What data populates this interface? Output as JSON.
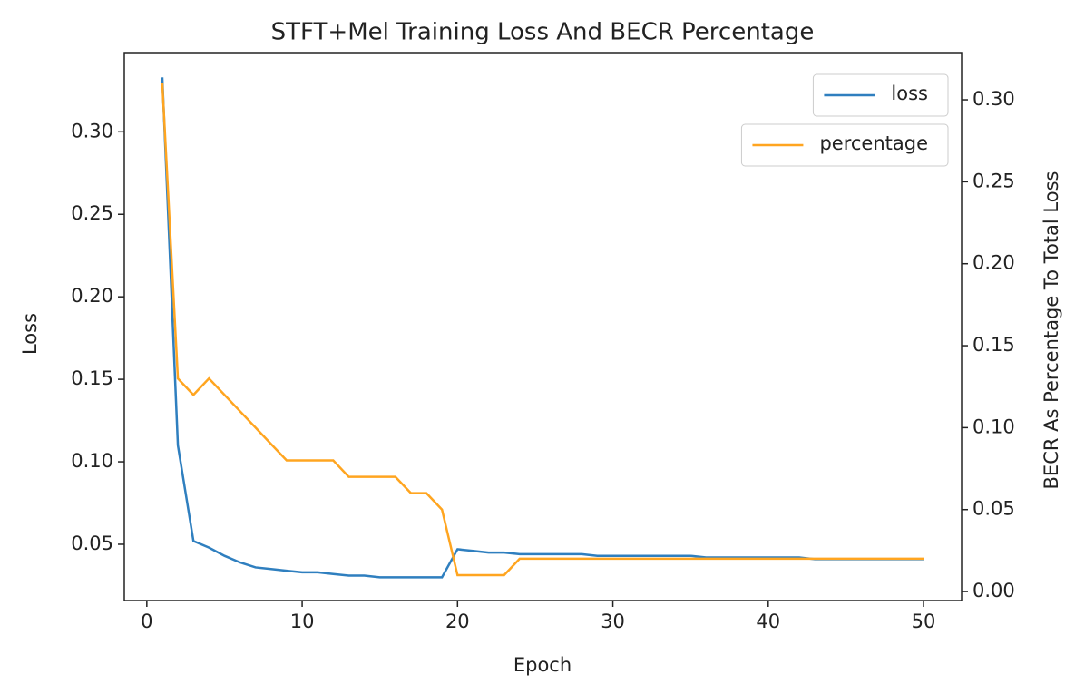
{
  "chart_data": {
    "type": "line",
    "title": "STFT+Mel Training Loss And BECR Percentage",
    "xlabel": "Epoch",
    "ylabel": "Loss",
    "y2label": "BECR As Percentage To Total Loss",
    "x": [
      1,
      2,
      3,
      4,
      5,
      6,
      7,
      8,
      9,
      10,
      11,
      12,
      13,
      14,
      15,
      16,
      17,
      18,
      19,
      20,
      21,
      22,
      23,
      24,
      25,
      26,
      27,
      28,
      29,
      30,
      31,
      32,
      33,
      34,
      35,
      36,
      37,
      38,
      39,
      40,
      41,
      42,
      43,
      44,
      45,
      46,
      47,
      48,
      49,
      50
    ],
    "series": [
      {
        "name": "loss",
        "color": "#2f7fbf",
        "axis": "y",
        "values": [
          0.333,
          0.11,
          0.052,
          0.048,
          0.043,
          0.039,
          0.036,
          0.035,
          0.034,
          0.033,
          0.033,
          0.032,
          0.031,
          0.031,
          0.03,
          0.03,
          0.03,
          0.03,
          0.03,
          0.047,
          0.046,
          0.045,
          0.045,
          0.044,
          0.044,
          0.044,
          0.044,
          0.044,
          0.043,
          0.043,
          0.043,
          0.043,
          0.043,
          0.043,
          0.043,
          0.042,
          0.042,
          0.042,
          0.042,
          0.042,
          0.042,
          0.042,
          0.041,
          0.041,
          0.041,
          0.041,
          0.041,
          0.041,
          0.041,
          0.041
        ]
      },
      {
        "name": "percentage",
        "color": "#ffa520",
        "axis": "y2",
        "values": [
          0.31,
          0.13,
          0.12,
          0.13,
          0.12,
          0.11,
          0.1,
          0.09,
          0.08,
          0.08,
          0.08,
          0.08,
          0.07,
          0.07,
          0.07,
          0.07,
          0.06,
          0.06,
          0.05,
          0.01,
          0.01,
          0.01,
          0.01,
          0.02,
          0.02,
          0.02,
          0.02,
          0.02,
          0.02,
          0.02,
          0.02,
          0.02,
          0.02,
          0.02,
          0.02,
          0.02,
          0.02,
          0.02,
          0.02,
          0.02,
          0.02,
          0.02,
          0.02,
          0.02,
          0.02,
          0.02,
          0.02,
          0.02,
          0.02,
          0.02
        ]
      }
    ],
    "xlim": [
      -1.45,
      52.45
    ],
    "xticks": [
      0,
      10,
      20,
      30,
      40,
      50
    ],
    "ylim": [
      0.0159,
      0.348
    ],
    "yticks": [
      0.05,
      {
        "value": 0.1,
        "label": "0.10"
      },
      0.15,
      {
        "value": 0.2,
        "label": "0.20"
      },
      0.25,
      {
        "value": 0.3,
        "label": "0.30"
      }
    ],
    "y2lim": [
      -0.0055,
      0.3288
    ],
    "y2ticks": [
      {
        "value": 0,
        "label": "0.00"
      },
      0.05,
      {
        "value": 0.1,
        "label": "0.10"
      },
      0.15,
      {
        "value": 0.2,
        "label": "0.20"
      },
      0.25,
      {
        "value": 0.3,
        "label": "0.30"
      }
    ],
    "legend": "upper right",
    "grid": false
  }
}
